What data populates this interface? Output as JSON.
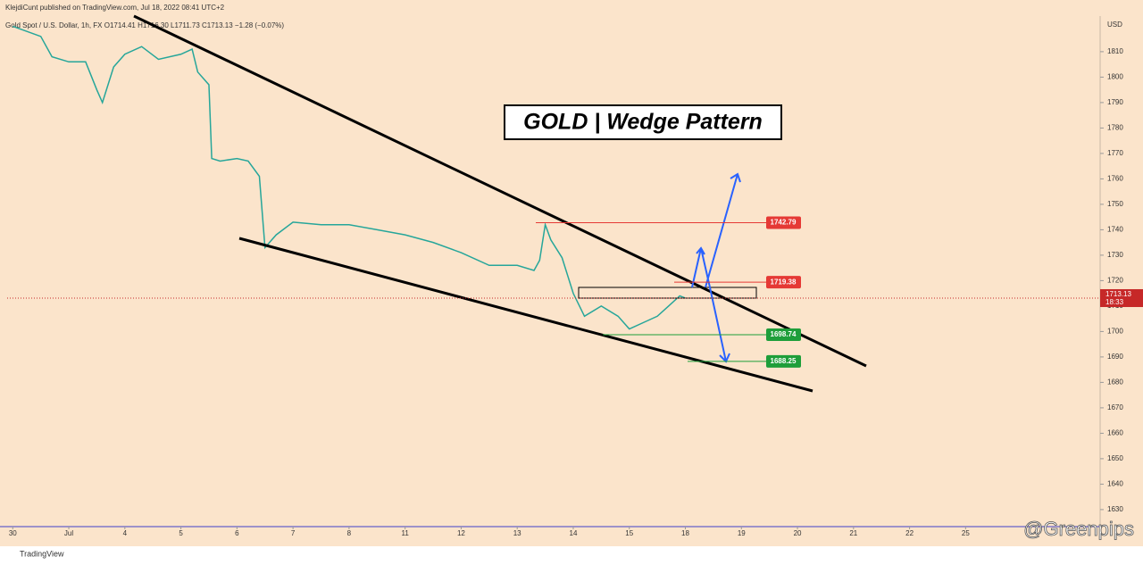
{
  "chart_data": {
    "type": "line",
    "header": "KlejdiCunt published on TradingView.com, Jul 18, 2022 08:41 UTC+2",
    "legend": "Gold Spot / U.S. Dollar, 1h, FX  O1714.41 H1716.30 L1711.73 C1713.13 −1.28 (−0.07%)",
    "title": "GOLD | Wedge Pattern",
    "axis_unit": "USD",
    "watermark": "@Greenpips",
    "footer": "TradingView",
    "series": [
      {
        "name": "Gold Spot / U.S. Dollar",
        "color": "#26a69a",
        "x": [
          0,
          0.5,
          0.7,
          1.0,
          1.3,
          1.5,
          1.6,
          1.8,
          2.0,
          2.3,
          2.6,
          3.0,
          3.2,
          3.3,
          3.5,
          3.55,
          3.7,
          4.0,
          4.2,
          4.4,
          4.5,
          4.7,
          5.0,
          5.5,
          6.0,
          6.5,
          7.0,
          7.5,
          8.0,
          8.5,
          9.0,
          9.3,
          9.4,
          9.5,
          9.6,
          9.8,
          10.0,
          10.2,
          10.5,
          10.8,
          11.0,
          11.3,
          11.5,
          11.7,
          11.9,
          12.0
        ],
        "values": [
          1820,
          1816,
          1808,
          1806,
          1806,
          1795,
          1790,
          1804,
          1809,
          1812,
          1807,
          1809,
          1811,
          1802,
          1797,
          1768,
          1767,
          1768,
          1767,
          1761,
          1733,
          1738,
          1743,
          1742,
          1742,
          1740,
          1738,
          1735,
          1731,
          1726,
          1726,
          1724,
          1728,
          1742,
          1736,
          1729,
          1715,
          1706,
          1710,
          1706,
          1701,
          1704,
          1706,
          1710,
          1714,
          1713.13
        ]
      }
    ],
    "last_price": 1713.13,
    "countdown": "18:33",
    "levels": [
      {
        "value": 1742.79,
        "color": "#e53935"
      },
      {
        "value": 1719.38,
        "color": "#e53935"
      },
      {
        "value": 1698.74,
        "color": "#1e9e3a"
      },
      {
        "value": 1688.25,
        "color": "#1e9e3a"
      }
    ],
    "xlim": [
      -0.1,
      19.4
    ],
    "xticks": [
      {
        "value": 0,
        "label": "30"
      },
      {
        "value": 1,
        "label": "Jul"
      },
      {
        "value": 2,
        "label": "4"
      },
      {
        "value": 3,
        "label": "5"
      },
      {
        "value": 4,
        "label": "6"
      },
      {
        "value": 5,
        "label": "7"
      },
      {
        "value": 6,
        "label": "8"
      },
      {
        "value": 7,
        "label": "11"
      },
      {
        "value": 8,
        "label": "12"
      },
      {
        "value": 9,
        "label": "13"
      },
      {
        "value": 10,
        "label": "14"
      },
      {
        "value": 11,
        "label": "15"
      },
      {
        "value": 12,
        "label": "18"
      },
      {
        "value": 13,
        "label": "19"
      },
      {
        "value": 14,
        "label": "20"
      },
      {
        "value": 15,
        "label": "21"
      },
      {
        "value": 16,
        "label": "22"
      },
      {
        "value": 17,
        "label": "25"
      }
    ],
    "ylim": [
      1623.3,
      1824
    ],
    "yticks": [
      1630,
      1640,
      1650,
      1660,
      1670,
      1680,
      1690,
      1700,
      1710,
      1720,
      1730,
      1740,
      1750,
      1760,
      1770,
      1780,
      1790,
      1800,
      1810
    ]
  }
}
